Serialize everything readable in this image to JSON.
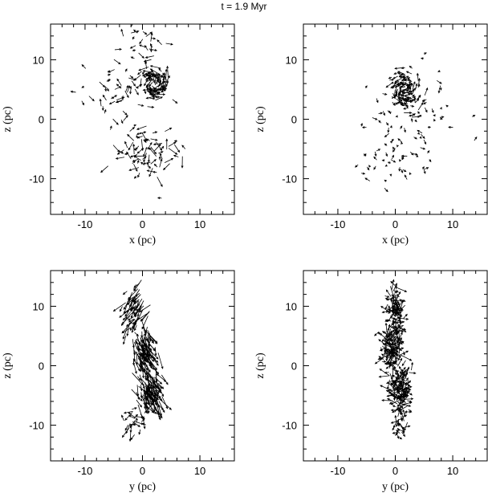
{
  "figure": {
    "title": "t = 1.9 Myr",
    "stroke_color": "#000000",
    "background": "#ffffff"
  },
  "chart_data": [
    {
      "type": "scatter",
      "subtype": "vector-field",
      "xlabel": "x  (pc)",
      "ylabel": "z  (pc)",
      "xlim": [
        -16,
        16
      ],
      "ylim": [
        -16,
        16
      ],
      "xticks": [
        "-10",
        "0",
        "10"
      ],
      "yticks": [
        "-10",
        "0",
        "10"
      ],
      "grid": false,
      "clusters": [
        {
          "center": [
            2,
            6
          ],
          "spread": [
            2.0,
            2.5
          ],
          "count": 90,
          "arrow_len": 1.3,
          "dir": "swirl"
        },
        {
          "center": [
            1,
            -6
          ],
          "spread": [
            4.5,
            4.0
          ],
          "count": 70,
          "arrow_len": 1.2,
          "dir": "random"
        },
        {
          "center": [
            -4,
            4
          ],
          "spread": [
            6.0,
            6.0
          ],
          "count": 60,
          "arrow_len": 0.9,
          "dir": "random"
        },
        {
          "center": [
            1,
            13
          ],
          "spread": [
            3.0,
            2.0
          ],
          "count": 20,
          "arrow_len": 1.0,
          "dir": "random"
        }
      ]
    },
    {
      "type": "scatter",
      "subtype": "vector-field",
      "xlabel": "x  (pc)",
      "ylabel": "z  (pc)",
      "xlim": [
        -16,
        16
      ],
      "ylim": [
        -16,
        16
      ],
      "xticks": [
        "-10",
        "0",
        "10"
      ],
      "yticks": [
        "-10",
        "0",
        "10"
      ],
      "grid": false,
      "clusters": [
        {
          "center": [
            1.5,
            5
          ],
          "spread": [
            1.8,
            3.0
          ],
          "count": 110,
          "arrow_len": 1.0,
          "dir": "swirl"
        },
        {
          "center": [
            2,
            2
          ],
          "spread": [
            6.0,
            6.0
          ],
          "count": 70,
          "arrow_len": 0.6,
          "dir": "random"
        },
        {
          "center": [
            0,
            -7
          ],
          "spread": [
            5.0,
            3.5
          ],
          "count": 45,
          "arrow_len": 0.6,
          "dir": "random"
        }
      ]
    },
    {
      "type": "scatter",
      "subtype": "vector-field",
      "xlabel": "y  (pc)",
      "ylabel": "z  (pc)",
      "xlim": [
        -16,
        16
      ],
      "ylim": [
        -16,
        16
      ],
      "xticks": [
        "-10",
        "0",
        "10"
      ],
      "yticks": [
        "-10",
        "0",
        "10"
      ],
      "grid": false,
      "clusters": [
        {
          "center": [
            -1,
            10
          ],
          "spread": [
            1.8,
            3.0
          ],
          "count": 70,
          "arrow_len": 1.6,
          "dir": "down-left"
        },
        {
          "center": [
            0,
            3
          ],
          "spread": [
            1.4,
            3.0
          ],
          "count": 110,
          "arrow_len": 1.8,
          "dir": "down-right"
        },
        {
          "center": [
            1,
            -4
          ],
          "spread": [
            1.6,
            3.0
          ],
          "count": 110,
          "arrow_len": 1.8,
          "dir": "down-right"
        },
        {
          "center": [
            -1,
            -9
          ],
          "spread": [
            1.5,
            2.0
          ],
          "count": 25,
          "arrow_len": 1.2,
          "dir": "random"
        }
      ]
    },
    {
      "type": "scatter",
      "subtype": "vector-field",
      "xlabel": "y  (pc)",
      "ylabel": "z  (pc)",
      "xlim": [
        -16,
        16
      ],
      "ylim": [
        -16,
        16
      ],
      "xticks": [
        "-10",
        "0",
        "10"
      ],
      "yticks": [
        "-10",
        "0",
        "10"
      ],
      "grid": false,
      "clusters": [
        {
          "center": [
            0,
            9
          ],
          "spread": [
            1.3,
            3.0
          ],
          "count": 90,
          "arrow_len": 1.2,
          "dir": "random"
        },
        {
          "center": [
            -0.5,
            3
          ],
          "spread": [
            1.3,
            3.0
          ],
          "count": 140,
          "arrow_len": 1.3,
          "dir": "random"
        },
        {
          "center": [
            0.8,
            -4
          ],
          "spread": [
            1.3,
            3.0
          ],
          "count": 140,
          "arrow_len": 1.2,
          "dir": "random"
        },
        {
          "center": [
            0.5,
            -10
          ],
          "spread": [
            1.0,
            2.0
          ],
          "count": 30,
          "arrow_len": 1.0,
          "dir": "random"
        }
      ]
    }
  ]
}
